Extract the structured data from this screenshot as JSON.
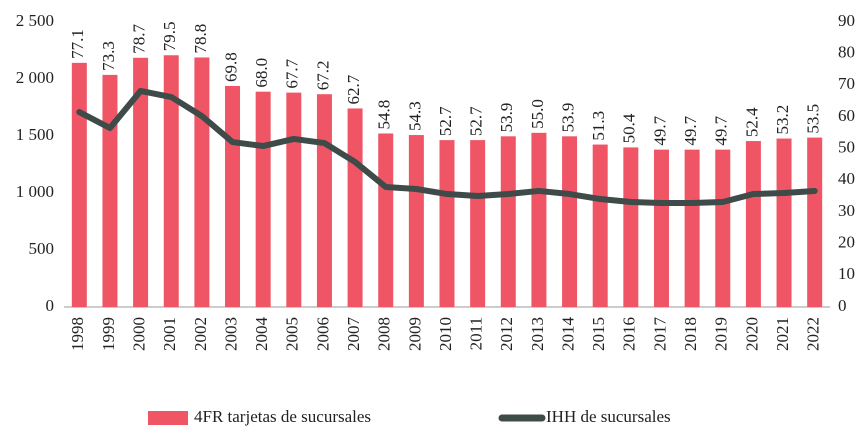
{
  "chart_data": {
    "type": "bar_line",
    "categories": [
      "1998",
      "1999",
      "2000",
      "2001",
      "2002",
      "2003",
      "2004",
      "2005",
      "2006",
      "2007",
      "2008",
      "2009",
      "2010",
      "2011",
      "2012",
      "2013",
      "2014",
      "2015",
      "2016",
      "2017",
      "2018",
      "2019",
      "2020",
      "2021",
      "2022"
    ],
    "series": [
      {
        "name": "4FR tarjetas de sucursales",
        "type": "bar",
        "axis": "y2",
        "color": "#ef5565",
        "values": [
          77.1,
          73.3,
          78.7,
          79.5,
          78.8,
          69.8,
          68.0,
          67.7,
          67.2,
          62.7,
          54.8,
          54.3,
          52.7,
          52.7,
          53.9,
          55.0,
          53.9,
          51.3,
          50.4,
          49.7,
          49.7,
          49.7,
          52.4,
          53.2,
          53.5
        ],
        "value_labels": [
          "77.1",
          "73.3",
          "78.7",
          "79.5",
          "78.8",
          "69.8",
          "68.0",
          "67.7",
          "67.2",
          "62.7",
          "54.8",
          "54.3",
          "52.7",
          "52.7",
          "53.9",
          "55.0",
          "53.9",
          "51.3",
          "50.4",
          "49.7",
          "49.7",
          "49.7",
          "52.4",
          "53.2",
          "53.5"
        ]
      },
      {
        "name": "IHH de sucursales",
        "type": "line",
        "axis": "y",
        "color": "#3e4b48",
        "values": [
          1710,
          1570,
          1895,
          1842,
          1675,
          1447,
          1412,
          1474,
          1438,
          1272,
          1053,
          1035,
          991,
          974,
          991,
          1018,
          991,
          947,
          921,
          912,
          912,
          921,
          991,
          1000,
          1018
        ]
      }
    ],
    "ylim": [
      0,
      2500
    ],
    "yticks": [
      0,
      500,
      {
        "value": 1000,
        "label": "1 000"
      },
      {
        "value": 1500,
        "label": "1 500"
      },
      {
        "value": 2000,
        "label": "2 000"
      },
      {
        "value": 2500,
        "label": "2 500"
      }
    ],
    "y2lim": [
      0,
      90
    ],
    "y2ticks": [
      0,
      10,
      20,
      30,
      40,
      50,
      60,
      70,
      80,
      90
    ],
    "legend": "bottom"
  }
}
